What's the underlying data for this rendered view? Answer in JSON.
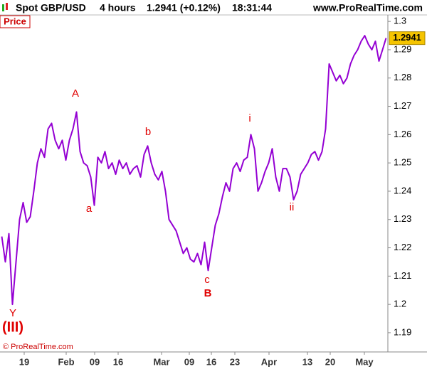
{
  "header": {
    "symbol": "Spot GBP/USD",
    "timeframe": "4 hours",
    "quote": "1.2941 (+0.12%)",
    "time": "18:31:44",
    "site": "www.ProRealTime.com"
  },
  "panel_label": "Price",
  "copyright": "© ProRealTime.com",
  "chart_data": {
    "type": "line",
    "color": "#9400d3",
    "values": [
      1.224,
      1.215,
      1.225,
      1.2,
      1.215,
      1.23,
      1.236,
      1.229,
      1.231,
      1.24,
      1.25,
      1.255,
      1.252,
      1.262,
      1.264,
      1.258,
      1.255,
      1.258,
      1.251,
      1.258,
      1.262,
      1.268,
      1.254,
      1.25,
      1.249,
      1.245,
      1.235,
      1.252,
      1.25,
      1.254,
      1.248,
      1.25,
      1.246,
      1.251,
      1.248,
      1.25,
      1.246,
      1.248,
      1.249,
      1.245,
      1.253,
      1.256,
      1.25,
      1.246,
      1.244,
      1.247,
      1.24,
      1.23,
      1.228,
      1.226,
      1.222,
      1.218,
      1.22,
      1.216,
      1.215,
      1.218,
      1.214,
      1.222,
      1.212,
      1.22,
      1.228,
      1.232,
      1.238,
      1.243,
      1.24,
      1.248,
      1.25,
      1.247,
      1.251,
      1.252,
      1.26,
      1.255,
      1.24,
      1.243,
      1.247,
      1.25,
      1.255,
      1.245,
      1.24,
      1.248,
      1.248,
      1.245,
      1.237,
      1.24,
      1.246,
      1.248,
      1.25,
      1.253,
      1.254,
      1.251,
      1.254,
      1.262,
      1.285,
      1.282,
      1.279,
      1.281,
      1.278,
      1.28,
      1.285,
      1.288,
      1.29,
      1.293,
      1.295,
      1.292,
      1.29,
      1.293,
      1.286,
      1.29,
      1.2941
    ],
    "xlim": [
      0,
      109
    ],
    "xticks": [
      {
        "value": 6.8,
        "label": "19"
      },
      {
        "value": 18.6,
        "label": "Feb"
      },
      {
        "value": 26.6,
        "label": "09"
      },
      {
        "value": 33.2,
        "label": "16"
      },
      {
        "value": 45.4,
        "label": "Mar"
      },
      {
        "value": 53.2,
        "label": "09"
      },
      {
        "value": 59.4,
        "label": "16"
      },
      {
        "value": 66,
        "label": "23"
      },
      {
        "value": 75.6,
        "label": "Apr"
      },
      {
        "value": 86.4,
        "label": "13"
      },
      {
        "value": 92.8,
        "label": "20"
      },
      {
        "value": 102.4,
        "label": "May"
      }
    ],
    "ylim": [
      1.1832,
      1.3023
    ],
    "yticks": [
      1.19,
      1.2,
      1.21,
      1.22,
      1.23,
      1.24,
      1.25,
      1.26,
      1.27,
      1.28,
      1.29,
      1.3
    ],
    "annotations": [
      "A",
      "a",
      "b",
      "c",
      "B",
      "i",
      "ii",
      "Y",
      "(III)"
    ]
  }
}
